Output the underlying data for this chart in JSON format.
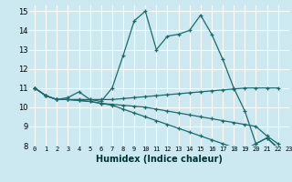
{
  "title": "",
  "xlabel": "Humidex (Indice chaleur)",
  "bg_color": "#cce8f0",
  "line_color": "#1a6b6b",
  "grid_color": "#ffffff",
  "xlim": [
    -0.5,
    23
  ],
  "ylim": [
    8,
    15.3
  ],
  "yticks": [
    8,
    9,
    10,
    11,
    12,
    13,
    14,
    15
  ],
  "xticks": [
    0,
    1,
    2,
    3,
    4,
    5,
    6,
    7,
    8,
    9,
    10,
    11,
    12,
    13,
    14,
    15,
    16,
    17,
    18,
    19,
    20,
    21,
    22,
    23
  ],
  "series": [
    {
      "x": [
        0,
        1,
        2,
        3,
        4,
        5,
        6,
        7,
        8,
        9,
        10,
        11,
        12,
        13,
        14,
        15,
        16,
        17,
        18,
        19,
        20,
        21,
        22
      ],
      "y": [
        11.0,
        10.6,
        10.4,
        10.5,
        10.8,
        10.4,
        10.3,
        11.0,
        12.7,
        14.5,
        15.0,
        13.0,
        13.7,
        13.8,
        14.0,
        14.8,
        13.8,
        12.5,
        11.0,
        9.8,
        8.1,
        8.4,
        7.9
      ]
    },
    {
      "x": [
        0,
        1,
        2,
        3,
        4,
        5,
        6,
        7,
        8,
        9,
        10,
        11,
        12,
        13,
        14,
        15,
        16,
        17,
        18,
        19,
        20,
        21,
        22
      ],
      "y": [
        11.0,
        10.6,
        10.4,
        10.4,
        10.4,
        10.4,
        10.4,
        10.4,
        10.45,
        10.5,
        10.55,
        10.6,
        10.65,
        10.7,
        10.75,
        10.8,
        10.85,
        10.9,
        10.95,
        11.0,
        11.0,
        11.0,
        11.0
      ]
    },
    {
      "x": [
        0,
        1,
        2,
        3,
        4,
        5,
        6,
        7,
        8,
        9,
        10,
        11,
        12,
        13,
        14,
        15,
        16,
        17,
        18,
        19,
        20,
        21,
        22
      ],
      "y": [
        11.0,
        10.6,
        10.4,
        10.4,
        10.35,
        10.3,
        10.2,
        10.15,
        10.1,
        10.05,
        10.0,
        9.9,
        9.8,
        9.7,
        9.6,
        9.5,
        9.4,
        9.3,
        9.2,
        9.1,
        9.0,
        8.5,
        8.1
      ]
    },
    {
      "x": [
        0,
        1,
        2,
        3,
        4,
        5,
        6,
        7,
        8,
        9,
        10,
        11,
        12,
        13,
        14,
        15,
        16,
        17,
        18,
        19,
        20,
        21,
        22
      ],
      "y": [
        11.0,
        10.6,
        10.4,
        10.4,
        10.35,
        10.3,
        10.2,
        10.1,
        9.9,
        9.7,
        9.5,
        9.3,
        9.1,
        8.9,
        8.7,
        8.5,
        8.3,
        8.1,
        7.9,
        7.8,
        8.1,
        8.4,
        7.85
      ]
    }
  ]
}
